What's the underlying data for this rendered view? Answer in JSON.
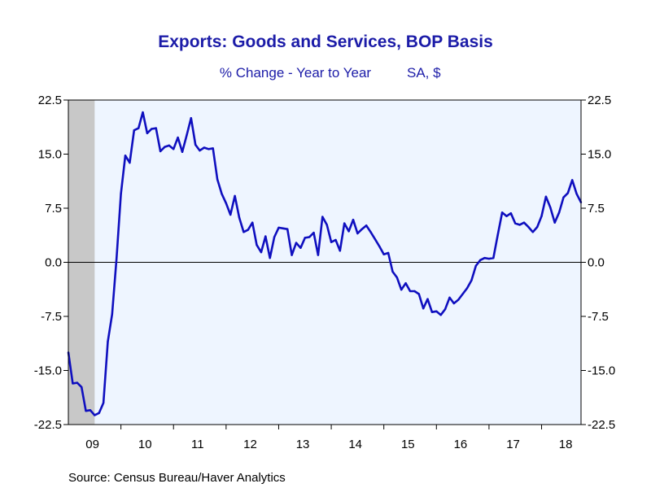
{
  "chart_data": {
    "type": "line",
    "title": "Exports: Goods and Services, BOP Basis",
    "subtitle": "% Change - Year to Year",
    "subtitle_right": "SA, $",
    "source": "Source:  Census Bureau/Haver Analytics",
    "ylim": [
      -22.5,
      22.5
    ],
    "y_ticks": [
      "22.5",
      "15.0",
      "7.5",
      "0.0",
      "-7.5",
      "-15.0",
      "-22.5"
    ],
    "x_ticks": [
      "09",
      "10",
      "11",
      "12",
      "13",
      "14",
      "15",
      "16",
      "17",
      "18"
    ],
    "x_start": "2009-01",
    "grid": false,
    "recession_shading": {
      "start": "2009-01",
      "end": "2009-06"
    },
    "colors": {
      "line": "#0f0fbf",
      "plot_bg": "#eef5ff",
      "recession": "#c8c8c8",
      "title": "#1c1ca8"
    },
    "series": [
      {
        "values": [
          -12.5,
          -16.8,
          -16.7,
          -17.3,
          -20.6,
          -20.5,
          -21.2,
          -20.9,
          -19.5,
          -11.0,
          -7.2,
          0.5,
          9.5,
          14.8,
          13.8,
          18.3,
          18.6,
          20.8,
          17.9,
          18.5,
          18.6,
          15.4,
          16.0,
          16.2,
          15.7,
          17.3,
          15.3,
          17.6,
          20.0,
          16.3,
          15.5,
          15.9,
          15.7,
          15.8,
          11.5,
          9.5,
          8.2,
          6.6,
          9.2,
          6.2,
          4.2,
          4.5,
          5.5,
          2.4,
          1.4,
          3.6,
          0.6,
          3.5,
          4.8,
          4.7,
          4.6,
          1.0,
          2.7,
          2.0,
          3.4,
          3.5,
          4.1,
          1.0,
          6.3,
          5.2,
          2.8,
          3.1,
          1.6,
          5.4,
          4.3,
          5.9,
          4.0,
          4.6,
          5.1,
          4.2,
          3.2,
          2.2,
          1.1,
          1.3,
          -1.3,
          -2.1,
          -3.8,
          -2.9,
          -4.0,
          -4.0,
          -4.4,
          -6.4,
          -5.1,
          -6.9,
          -6.8,
          -7.3,
          -6.5,
          -4.9,
          -5.7,
          -5.2,
          -4.4,
          -3.6,
          -2.5,
          -0.5,
          0.3,
          0.6,
          0.5,
          0.6,
          3.8,
          6.9,
          6.4,
          6.8,
          5.4,
          5.2,
          5.5,
          4.9,
          4.2,
          4.9,
          6.4,
          9.1,
          7.6,
          5.5,
          6.9,
          9.0,
          9.6,
          11.4,
          9.5,
          8.3
        ]
      }
    ]
  }
}
